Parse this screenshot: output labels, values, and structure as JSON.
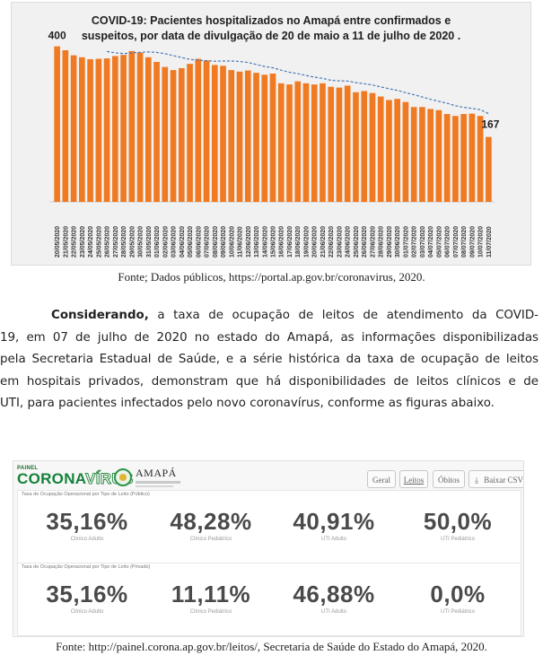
{
  "figure1": {
    "caption": "Fonte; Dados públicos, https://portal.ap.gov.br/coronavirus, 2020."
  },
  "chart_data": {
    "type": "bar",
    "title": "COVID-19: Pacientes hospitalizados no Amapá entre confirmados e suspeitos, por data de divulgação de 20 de maio a 11 de julho de 2020 .",
    "title_lines": [
      "COVID-19: Pacientes hospitalizados no Amapá entre confirmados e",
      "suspeitos, por data de divulgação de 20 de maio a 11 de julho de 2020 ."
    ],
    "categories": [
      "20/05/2020",
      "21/05/2020",
      "22/05/2020",
      "23/05/2020",
      "24/05/2020",
      "25/05/2020",
      "26/05/2020",
      "27/05/2020",
      "28/05/2020",
      "29/05/2020",
      "30/05/2020",
      "31/05/2020",
      "01/06/2020",
      "02/06/2020",
      "03/06/2020",
      "04/06/2020",
      "05/06/2020",
      "06/06/2020",
      "07/06/2020",
      "08/06/2020",
      "09/06/2020",
      "10/06/2020",
      "11/06/2020",
      "12/06/2020",
      "13/06/2020",
      "14/06/2020",
      "15/06/2020",
      "16/06/2020",
      "17/06/2020",
      "18/06/2020",
      "19/06/2020",
      "20/06/2020",
      "21/06/2020",
      "22/06/2020",
      "23/06/2020",
      "24/06/2020",
      "25/06/2020",
      "26/06/2020",
      "27/06/2020",
      "28/06/2020",
      "29/06/2020",
      "30/06/2020",
      "01/07/2020",
      "02/07/2020",
      "03/07/2020",
      "04/07/2020",
      "05/07/2020",
      "06/07/2020",
      "07/07/2020",
      "08/07/2020",
      "09/07/2020",
      "10/07/2020",
      "11/07/2020"
    ],
    "values": [
      400,
      390,
      377,
      372,
      367,
      368,
      369,
      375,
      378,
      388,
      384,
      372,
      360,
      347,
      339,
      344,
      355,
      368,
      364,
      352,
      350,
      339,
      335,
      338,
      332,
      327,
      330,
      305,
      302,
      310,
      305,
      302,
      305,
      296,
      294,
      299,
      282,
      285,
      280,
      271,
      262,
      265,
      257,
      244,
      244,
      239,
      236,
      226,
      221,
      226,
      227,
      221,
      167
    ],
    "series_type": "bar",
    "trend": "moving-average",
    "data_labels": [
      {
        "index": 0,
        "text": "400"
      },
      {
        "index": 52,
        "text": "167"
      }
    ],
    "bar_color": "#ef7a22",
    "trend_color": "#4a78b6",
    "ylim": [
      0,
      420
    ],
    "grid": false,
    "legend": "none"
  },
  "paragraph": {
    "lines": [
      "a taxa de ocupação de leitos de atendimento da COVID-",
      "19, em 07 de julho de 2020 no estado do Amapá, as informações disponibilizadas",
      "pela Secretaria Estadual de Saúde, e a série histórica da taxa de ocupação de leitos",
      "em hospitais privados, demonstram que há disponibilidades de leitos clínicos e de",
      "UTI, para pacientes infectados pelo novo coronavírus, conforme as figuras abaixo."
    ],
    "lead_bold": "Considerando,"
  },
  "figure2": {
    "brand_small": "PAINEL",
    "brand_main": "CORONA",
    "brand_main_suffix": "VÍRUS",
    "gov_name": "AMAPÁ",
    "buttons": {
      "geral": "Geral",
      "leitos": "Leitos",
      "obitos": "Óbitos",
      "csv": "Baixar CSV",
      "csv_icon": "download-icon"
    },
    "panels": [
      {
        "title": "Taxa de Ocupação Operacional por Tipo de Leito (Público)",
        "metrics": [
          {
            "value": "35,16%",
            "label": "Clínico Adulto"
          },
          {
            "value": "48,28%",
            "label": "Clínico Pediátrico"
          },
          {
            "value": "40,91%",
            "label": "UTI Adulto"
          },
          {
            "value": "50,0%",
            "label": "UTI Pediátrico"
          }
        ]
      },
      {
        "title": "Taxa de Ocupação Operacional por Tipo de Leito (Privado)",
        "metrics": [
          {
            "value": "35,16%",
            "label": "Clínico Adulto"
          },
          {
            "value": "11,11%",
            "label": "Clínico Pediátrico"
          },
          {
            "value": "46,88%",
            "label": "UTI Adulto"
          },
          {
            "value": "0,0%",
            "label": "UTI Pediátrico"
          }
        ]
      }
    ],
    "caption": "Fonte: http://painel.corona.ap.gov.br/leitos/, Secretaria de Saúde do Estado do Amapá, 2020."
  },
  "colors": {
    "accent_green": "#14823a",
    "metric_text": "#4a4a4a"
  }
}
